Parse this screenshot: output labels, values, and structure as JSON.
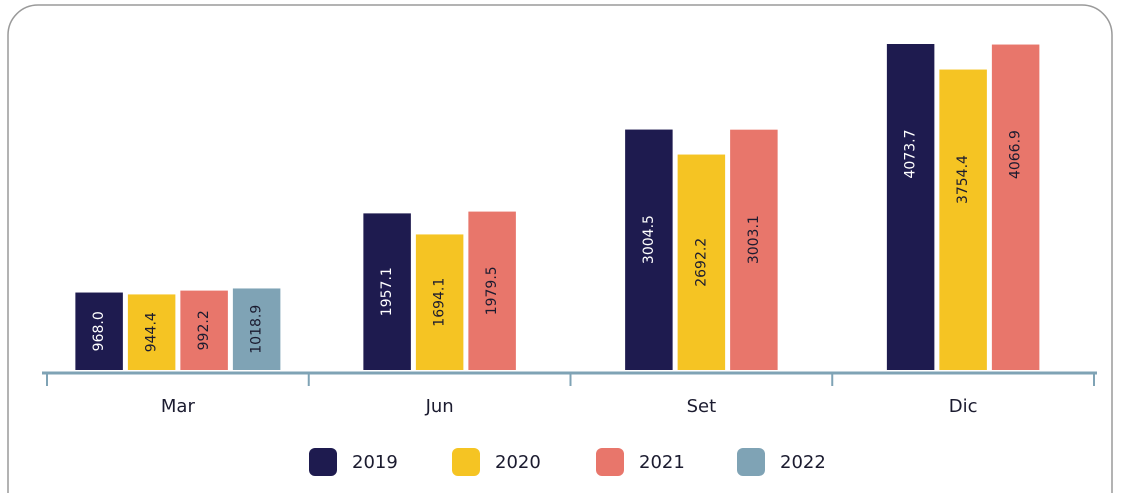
{
  "chart_data": {
    "type": "bar",
    "categories": [
      "Mar",
      "Jun",
      "Set",
      "Dic"
    ],
    "series": [
      {
        "name": "2019",
        "color": "#1e1b4f",
        "values": [
          968.0,
          1957.1,
          3004.5,
          4073.7
        ],
        "value_labels": [
          "968.0",
          "1957.1",
          "3004.5",
          "4073.7"
        ]
      },
      {
        "name": "2020",
        "color": "#f5c423",
        "values": [
          944.4,
          1694.1,
          2692.2,
          3754.4
        ],
        "value_labels": [
          "944.4",
          "1694.1",
          "2692.2",
          "3754.4"
        ]
      },
      {
        "name": "2021",
        "color": "#e8766b",
        "values": [
          992.2,
          1979.5,
          3003.1,
          4066.9
        ],
        "value_labels": [
          "992.2",
          "1979.5",
          "3003.1",
          "4066.9"
        ]
      },
      {
        "name": "2022",
        "color": "#7fa3b5",
        "values": [
          1018.9,
          null,
          null,
          null
        ],
        "value_labels": [
          "1018.9",
          null,
          null,
          null
        ]
      }
    ]
  }
}
